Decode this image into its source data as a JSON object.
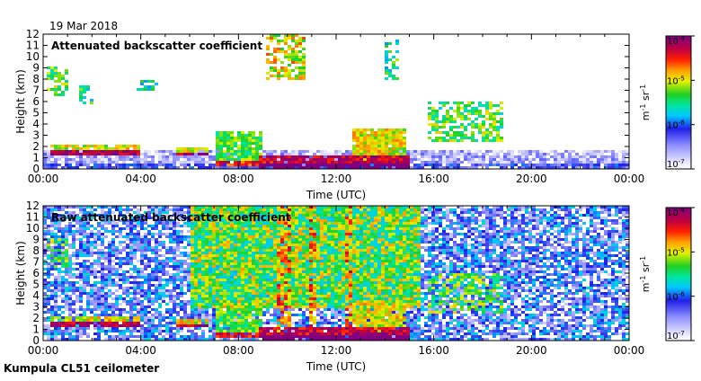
{
  "date_label": "19 Mar 2018",
  "footer_label": "Kumpula CL51 ceilometer",
  "chart_data": [
    {
      "type": "heatmap",
      "title": "Attenuated backscatter coefficient",
      "xlabel": "Time (UTC)",
      "ylabel": "Height (km)",
      "x_ticks": [
        "00:00",
        "04:00",
        "08:00",
        "12:00",
        "16:00",
        "20:00",
        "00:00"
      ],
      "x_range_hours": [
        0,
        24
      ],
      "y_ticks": [
        0,
        1,
        2,
        3,
        4,
        5,
        6,
        7,
        8,
        9,
        10,
        11,
        12
      ],
      "ylim": [
        0,
        12
      ],
      "colorbar": {
        "scale": "log",
        "range": [
          1e-07,
          0.0001
        ],
        "tick_labels": [
          "10-7",
          "10-6",
          "10-5",
          "10-4"
        ],
        "unit": "m-1 sr-1"
      },
      "features": [
        {
          "kind": "low-aerosol-layer",
          "t_start": 0,
          "t_end": 24,
          "h_low": 0,
          "h_high": 1.8,
          "level": -6.6
        },
        {
          "kind": "cloud-layer",
          "t_start": 0.3,
          "t_end": 4.0,
          "h_low": 1.3,
          "h_high": 2.2,
          "level": -5.0
        },
        {
          "kind": "cloud-layer",
          "t_start": 5.5,
          "t_end": 6.8,
          "h_low": 1.1,
          "h_high": 2.0,
          "level": -5.0
        },
        {
          "kind": "thick-cloud",
          "t_start": 7.0,
          "t_end": 9.0,
          "h_low": 0.3,
          "h_high": 3.3,
          "level": -5.3
        },
        {
          "kind": "boundary-layer-cloud",
          "t_start": 8.8,
          "t_end": 15.0,
          "h_low": 0,
          "h_high": 1.2,
          "level": -4.3
        },
        {
          "kind": "thick-cloud",
          "t_start": 12.7,
          "t_end": 14.8,
          "h_low": 0.4,
          "h_high": 3.7,
          "level": -5.0
        },
        {
          "kind": "mid-cloud",
          "t_start": 15.7,
          "t_end": 18.9,
          "h_low": 2.5,
          "h_high": 6.0,
          "level": -5.3
        },
        {
          "kind": "high-cloud",
          "t_start": 0.1,
          "t_end": 1.0,
          "h_low": 6.5,
          "h_high": 9.0,
          "level": -5.3
        },
        {
          "kind": "high-cloud",
          "t_start": 1.5,
          "t_end": 2.0,
          "h_low": 5.8,
          "h_high": 7.5,
          "level": -5.5
        },
        {
          "kind": "high-cloud",
          "t_start": 3.8,
          "t_end": 4.7,
          "h_low": 7.0,
          "h_high": 8.0,
          "level": -5.5
        },
        {
          "kind": "high-cloud",
          "t_start": 9.2,
          "t_end": 10.8,
          "h_low": 8.0,
          "h_high": 12.0,
          "level": -5.0
        },
        {
          "kind": "high-cloud",
          "t_start": 14.0,
          "t_end": 14.6,
          "h_low": 8.0,
          "h_high": 11.5,
          "level": -5.5
        }
      ]
    },
    {
      "type": "heatmap",
      "title": "Raw attenuated backscatter coefficient",
      "xlabel": "Time (UTC)",
      "ylabel": "Height (km)",
      "x_ticks": [
        "00:00",
        "04:00",
        "08:00",
        "12:00",
        "16:00",
        "20:00",
        "00:00"
      ],
      "x_range_hours": [
        0,
        24
      ],
      "y_ticks": [
        0,
        1,
        2,
        3,
        4,
        5,
        6,
        7,
        8,
        9,
        10,
        11,
        12
      ],
      "ylim": [
        0,
        12
      ],
      "colorbar": {
        "scale": "log",
        "range": [
          1e-07,
          0.0001
        ],
        "tick_labels": [
          "10-7",
          "10-6",
          "10-5",
          "10-4"
        ],
        "unit": "m-1 sr-1"
      },
      "features": [
        {
          "kind": "noise-background",
          "t_start": 0,
          "t_end": 24,
          "h_low": 0,
          "h_high": 12,
          "level": -6.2
        },
        {
          "kind": "noise-bright",
          "t_start": 6.0,
          "t_end": 15.5,
          "h_low": 3.0,
          "h_high": 12,
          "level": -5.3
        },
        {
          "kind": "cloud-layer",
          "t_start": 0.3,
          "t_end": 4.0,
          "h_low": 1.3,
          "h_high": 2.2,
          "level": -5.0
        },
        {
          "kind": "cloud-layer",
          "t_start": 5.5,
          "t_end": 6.8,
          "h_low": 1.1,
          "h_high": 2.0,
          "level": -5.0
        },
        {
          "kind": "thick-cloud",
          "t_start": 7.0,
          "t_end": 9.0,
          "h_low": 0.3,
          "h_high": 3.3,
          "level": -5.3
        },
        {
          "kind": "boundary-layer-cloud",
          "t_start": 8.8,
          "t_end": 15.0,
          "h_low": 0,
          "h_high": 1.2,
          "level": -4.3
        },
        {
          "kind": "thick-cloud",
          "t_start": 12.7,
          "t_end": 14.8,
          "h_low": 0.4,
          "h_high": 3.7,
          "level": -5.0
        },
        {
          "kind": "mid-cloud",
          "t_start": 15.7,
          "t_end": 18.9,
          "h_low": 2.5,
          "h_high": 6.0,
          "level": -5.3
        },
        {
          "kind": "high-cloud",
          "t_start": 0.1,
          "t_end": 1.0,
          "h_low": 6.5,
          "h_high": 9.0,
          "level": -5.3
        },
        {
          "kind": "precip-streak",
          "t_start": 9.6,
          "t_end": 10.1,
          "h_low": 0,
          "h_high": 12,
          "level": -4.7
        },
        {
          "kind": "precip-streak",
          "t_start": 10.9,
          "t_end": 11.2,
          "h_low": 0,
          "h_high": 12,
          "level": -4.7
        },
        {
          "kind": "precip-streak",
          "t_start": 12.3,
          "t_end": 12.6,
          "h_low": 0,
          "h_high": 12,
          "level": -4.7
        }
      ]
    }
  ]
}
